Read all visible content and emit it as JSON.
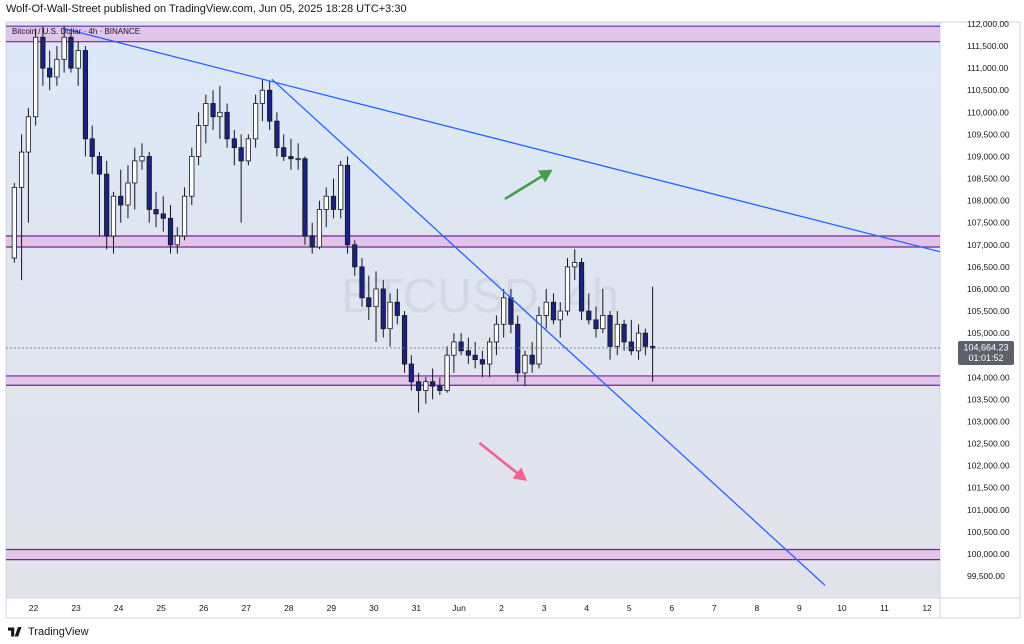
{
  "header": {
    "published_text": "Wolf-Of-Wall-Street published on TradingView.com, Jun 05, 2025 18:28 UTC+3:30"
  },
  "footer": {
    "brand": "TradingView"
  },
  "colors": {
    "up_candle_fill": "#ffffff",
    "down_candle_fill": "#1a237e",
    "candle_stroke": "#131722",
    "zone_fill": "#e1bee7",
    "zone_border": "#7b1fa2",
    "trendline": "#2962ff",
    "arrow_up": "#43a047",
    "arrow_down": "#f06292",
    "bg_top": "#dde8f7",
    "bg_bottom": "#e2e3ea",
    "price_label_bg": "#5d606b"
  },
  "chart_data": {
    "type": "candlestick",
    "title": "Bitcoin / U.S. Dollar · 4h · BINANCE",
    "watermark": "BTCUSD, 4h",
    "symbol": "BTCUSD",
    "interval": "4h",
    "exchange": "BINANCE",
    "ylim": [
      99200,
      112000
    ],
    "y_ticks": [
      "112,000.00",
      "111,500.00",
      "111,000.00",
      "110,500.00",
      "110,000.00",
      "109,500.00",
      "109,000.00",
      "108,500.00",
      "108,000.00",
      "107,500.00",
      "107,000.00",
      "106,500.00",
      "106,000.00",
      "105,500.00",
      "105,000.00",
      "104,500.00",
      "104,000.00",
      "103,500.00",
      "103,000.00",
      "102,500.00",
      "102,000.00",
      "101,500.00",
      "101,000.00",
      "100,500.00",
      "100,000.00",
      "99,500.00"
    ],
    "x_ticks": [
      "22",
      "23",
      "24",
      "25",
      "26",
      "27",
      "28",
      "29",
      "30",
      "31",
      "Jun",
      "2",
      "3",
      "4",
      "5",
      "6",
      "7",
      "8",
      "9",
      "10",
      "11",
      "12"
    ],
    "last_price": "104,664.23",
    "countdown": "01:01:52",
    "last_price_value": 104664.23,
    "zones": [
      {
        "from": 111600,
        "to": 111950
      },
      {
        "from": 106950,
        "to": 107200
      },
      {
        "from": 103820,
        "to": 104030
      },
      {
        "from": 99870,
        "to": 100100
      }
    ],
    "trendlines": [
      {
        "p1": {
          "day": 22.7,
          "price": 111900
        },
        "p2": {
          "day": 13.7,
          "price": 106500
        }
      },
      {
        "p1": {
          "day": 27.6,
          "price": 110750
        },
        "p2": {
          "day": 9.6,
          "price": 99290
        }
      }
    ],
    "arrows": [
      {
        "direction": "up",
        "from": {
          "day": 2.1,
          "price": 108050
        },
        "to": {
          "day": 3.2,
          "price": 108700
        }
      },
      {
        "direction": "down",
        "from": {
          "day": 1.5,
          "price": 102500
        },
        "to": {
          "day": 2.6,
          "price": 101650
        }
      }
    ],
    "candles": [
      {
        "t": 21.55,
        "o": 106700,
        "h": 108400,
        "l": 106600,
        "c": 108300
      },
      {
        "t": 21.72,
        "o": 108300,
        "h": 109500,
        "l": 106200,
        "c": 109100
      },
      {
        "t": 21.88,
        "o": 109100,
        "h": 110100,
        "l": 107500,
        "c": 109900
      },
      {
        "t": 22.05,
        "o": 109900,
        "h": 111900,
        "l": 109700,
        "c": 111700
      },
      {
        "t": 22.22,
        "o": 111700,
        "h": 111950,
        "l": 110600,
        "c": 111000
      },
      {
        "t": 22.38,
        "o": 111000,
        "h": 111400,
        "l": 110500,
        "c": 110800
      },
      {
        "t": 22.55,
        "o": 110800,
        "h": 111500,
        "l": 110600,
        "c": 111200
      },
      {
        "t": 22.72,
        "o": 111200,
        "h": 111950,
        "l": 110900,
        "c": 111700
      },
      {
        "t": 22.88,
        "o": 111700,
        "h": 111800,
        "l": 110900,
        "c": 111000
      },
      {
        "t": 23.05,
        "o": 111000,
        "h": 111600,
        "l": 110600,
        "c": 111400
      },
      {
        "t": 23.22,
        "o": 111400,
        "h": 111500,
        "l": 109000,
        "c": 109400
      },
      {
        "t": 23.38,
        "o": 109400,
        "h": 109700,
        "l": 108600,
        "c": 109000
      },
      {
        "t": 23.55,
        "o": 109000,
        "h": 109100,
        "l": 107200,
        "c": 108600
      },
      {
        "t": 23.72,
        "o": 108600,
        "h": 108900,
        "l": 106900,
        "c": 107200
      },
      {
        "t": 23.88,
        "o": 107200,
        "h": 108200,
        "l": 106800,
        "c": 108100
      },
      {
        "t": 24.05,
        "o": 108100,
        "h": 108700,
        "l": 107500,
        "c": 107900
      },
      {
        "t": 24.22,
        "o": 107900,
        "h": 108800,
        "l": 107600,
        "c": 108400
      },
      {
        "t": 24.38,
        "o": 108400,
        "h": 109200,
        "l": 107800,
        "c": 108900
      },
      {
        "t": 24.55,
        "o": 108900,
        "h": 109300,
        "l": 108700,
        "c": 109000
      },
      {
        "t": 24.72,
        "o": 109000,
        "h": 109100,
        "l": 107500,
        "c": 107800
      },
      {
        "t": 24.88,
        "o": 107800,
        "h": 108200,
        "l": 107400,
        "c": 107700
      },
      {
        "t": 25.05,
        "o": 107700,
        "h": 108100,
        "l": 107300,
        "c": 107600
      },
      {
        "t": 25.22,
        "o": 107600,
        "h": 107900,
        "l": 106800,
        "c": 107000
      },
      {
        "t": 25.38,
        "o": 107000,
        "h": 107400,
        "l": 106800,
        "c": 107200
      },
      {
        "t": 25.55,
        "o": 107200,
        "h": 108300,
        "l": 107100,
        "c": 108100
      },
      {
        "t": 25.72,
        "o": 108100,
        "h": 109200,
        "l": 107900,
        "c": 109000
      },
      {
        "t": 25.88,
        "o": 109000,
        "h": 110000,
        "l": 108800,
        "c": 109700
      },
      {
        "t": 26.05,
        "o": 109700,
        "h": 110400,
        "l": 109300,
        "c": 110200
      },
      {
        "t": 26.22,
        "o": 110200,
        "h": 110500,
        "l": 109600,
        "c": 109900
      },
      {
        "t": 26.38,
        "o": 109900,
        "h": 110600,
        "l": 109400,
        "c": 110000
      },
      {
        "t": 26.55,
        "o": 110000,
        "h": 110200,
        "l": 109200,
        "c": 109400
      },
      {
        "t": 26.72,
        "o": 109400,
        "h": 109600,
        "l": 108800,
        "c": 109200
      },
      {
        "t": 26.88,
        "o": 109200,
        "h": 109500,
        "l": 107500,
        "c": 108900
      },
      {
        "t": 27.05,
        "o": 108900,
        "h": 109500,
        "l": 108800,
        "c": 109400
      },
      {
        "t": 27.22,
        "o": 109400,
        "h": 110400,
        "l": 109200,
        "c": 110200
      },
      {
        "t": 27.38,
        "o": 110200,
        "h": 110750,
        "l": 109800,
        "c": 110500
      },
      {
        "t": 27.55,
        "o": 110500,
        "h": 110700,
        "l": 109600,
        "c": 109800
      },
      {
        "t": 27.72,
        "o": 109800,
        "h": 110000,
        "l": 109000,
        "c": 109200
      },
      {
        "t": 27.88,
        "o": 109200,
        "h": 109500,
        "l": 108900,
        "c": 109000
      },
      {
        "t": 28.05,
        "o": 109000,
        "h": 109400,
        "l": 108700,
        "c": 108950
      },
      {
        "t": 28.22,
        "o": 108950,
        "h": 109300,
        "l": 108700,
        "c": 108950
      },
      {
        "t": 28.38,
        "o": 108950,
        "h": 109000,
        "l": 107000,
        "c": 107200
      },
      {
        "t": 28.55,
        "o": 107200,
        "h": 107500,
        "l": 106800,
        "c": 106950
      },
      {
        "t": 28.72,
        "o": 106950,
        "h": 108000,
        "l": 106900,
        "c": 107800
      },
      {
        "t": 28.88,
        "o": 107800,
        "h": 108300,
        "l": 107400,
        "c": 108100
      },
      {
        "t": 29.05,
        "o": 108100,
        "h": 108500,
        "l": 107600,
        "c": 107800
      },
      {
        "t": 29.22,
        "o": 107800,
        "h": 108900,
        "l": 107600,
        "c": 108800
      },
      {
        "t": 29.38,
        "o": 108800,
        "h": 109000,
        "l": 106800,
        "c": 107000
      },
      {
        "t": 29.55,
        "o": 107000,
        "h": 107100,
        "l": 106300,
        "c": 106500
      },
      {
        "t": 29.72,
        "o": 106500,
        "h": 106700,
        "l": 105600,
        "c": 105800
      },
      {
        "t": 29.88,
        "o": 105800,
        "h": 106300,
        "l": 105300,
        "c": 105600
      },
      {
        "t": 30.05,
        "o": 105600,
        "h": 106400,
        "l": 104800,
        "c": 106000
      },
      {
        "t": 30.22,
        "o": 106000,
        "h": 106200,
        "l": 104900,
        "c": 105100
      },
      {
        "t": 30.38,
        "o": 105100,
        "h": 105900,
        "l": 104700,
        "c": 105700
      },
      {
        "t": 30.55,
        "o": 105700,
        "h": 106000,
        "l": 105200,
        "c": 105400
      },
      {
        "t": 30.72,
        "o": 105400,
        "h": 105500,
        "l": 104100,
        "c": 104300
      },
      {
        "t": 30.88,
        "o": 104300,
        "h": 104500,
        "l": 103700,
        "c": 103900
      },
      {
        "t": 31.05,
        "o": 103900,
        "h": 104100,
        "l": 103200,
        "c": 103700
      },
      {
        "t": 31.22,
        "o": 103700,
        "h": 104000,
        "l": 103400,
        "c": 103900
      },
      {
        "t": 31.38,
        "o": 103900,
        "h": 104200,
        "l": 103500,
        "c": 103800
      },
      {
        "t": 31.55,
        "o": 103800,
        "h": 104000,
        "l": 103600,
        "c": 103700
      },
      {
        "t": 31.72,
        "o": 103700,
        "h": 104700,
        "l": 103650,
        "c": 104500
      },
      {
        "t": 31.88,
        "o": 104500,
        "h": 105000,
        "l": 104100,
        "c": 104800
      },
      {
        "t": 32.05,
        "o": 104800,
        "h": 105000,
        "l": 104500,
        "c": 104600
      },
      {
        "t": 32.22,
        "o": 104600,
        "h": 104900,
        "l": 104300,
        "c": 104500
      },
      {
        "t": 32.38,
        "o": 104500,
        "h": 104800,
        "l": 104200,
        "c": 104400
      },
      {
        "t": 32.55,
        "o": 104400,
        "h": 104600,
        "l": 104000,
        "c": 104300
      },
      {
        "t": 32.72,
        "o": 104300,
        "h": 104900,
        "l": 104000,
        "c": 104800
      },
      {
        "t": 32.88,
        "o": 104800,
        "h": 105400,
        "l": 104500,
        "c": 105200
      },
      {
        "t": 33.05,
        "o": 105200,
        "h": 106000,
        "l": 104900,
        "c": 105800
      },
      {
        "t": 33.22,
        "o": 105800,
        "h": 106000,
        "l": 105000,
        "c": 105200
      },
      {
        "t": 33.38,
        "o": 105200,
        "h": 105400,
        "l": 103900,
        "c": 104100
      },
      {
        "t": 33.55,
        "o": 104100,
        "h": 104600,
        "l": 103800,
        "c": 104500
      },
      {
        "t": 33.72,
        "o": 104500,
        "h": 104800,
        "l": 104100,
        "c": 104300
      },
      {
        "t": 33.88,
        "o": 104300,
        "h": 105600,
        "l": 104200,
        "c": 105400
      },
      {
        "t": 34.05,
        "o": 105400,
        "h": 106000,
        "l": 105100,
        "c": 105700
      },
      {
        "t": 34.22,
        "o": 105700,
        "h": 105900,
        "l": 105200,
        "c": 105300
      },
      {
        "t": 34.38,
        "o": 105300,
        "h": 105700,
        "l": 104900,
        "c": 105500
      },
      {
        "t": 34.55,
        "o": 105500,
        "h": 106700,
        "l": 105400,
        "c": 106500
      },
      {
        "t": 34.72,
        "o": 106500,
        "h": 106900,
        "l": 106200,
        "c": 106600
      },
      {
        "t": 34.88,
        "o": 106600,
        "h": 106700,
        "l": 105300,
        "c": 105500
      },
      {
        "t": 35.05,
        "o": 105500,
        "h": 105900,
        "l": 105200,
        "c": 105300
      },
      {
        "t": 35.22,
        "o": 105300,
        "h": 105600,
        "l": 104900,
        "c": 105100
      },
      {
        "t": 35.38,
        "o": 105100,
        "h": 106000,
        "l": 105000,
        "c": 105400
      },
      {
        "t": 35.55,
        "o": 105400,
        "h": 105500,
        "l": 104400,
        "c": 104700
      },
      {
        "t": 35.72,
        "o": 104700,
        "h": 105500,
        "l": 104500,
        "c": 105200
      },
      {
        "t": 35.88,
        "o": 105200,
        "h": 105300,
        "l": 104600,
        "c": 104800
      },
      {
        "t": 36.05,
        "o": 104800,
        "h": 105300,
        "l": 104500,
        "c": 104600
      },
      {
        "t": 36.22,
        "o": 104600,
        "h": 105200,
        "l": 104400,
        "c": 105000
      },
      {
        "t": 36.38,
        "o": 105000,
        "h": 105100,
        "l": 104500,
        "c": 104700
      },
      {
        "t": 36.55,
        "o": 104700,
        "h": 106050,
        "l": 103900,
        "c": 104660
      }
    ]
  }
}
